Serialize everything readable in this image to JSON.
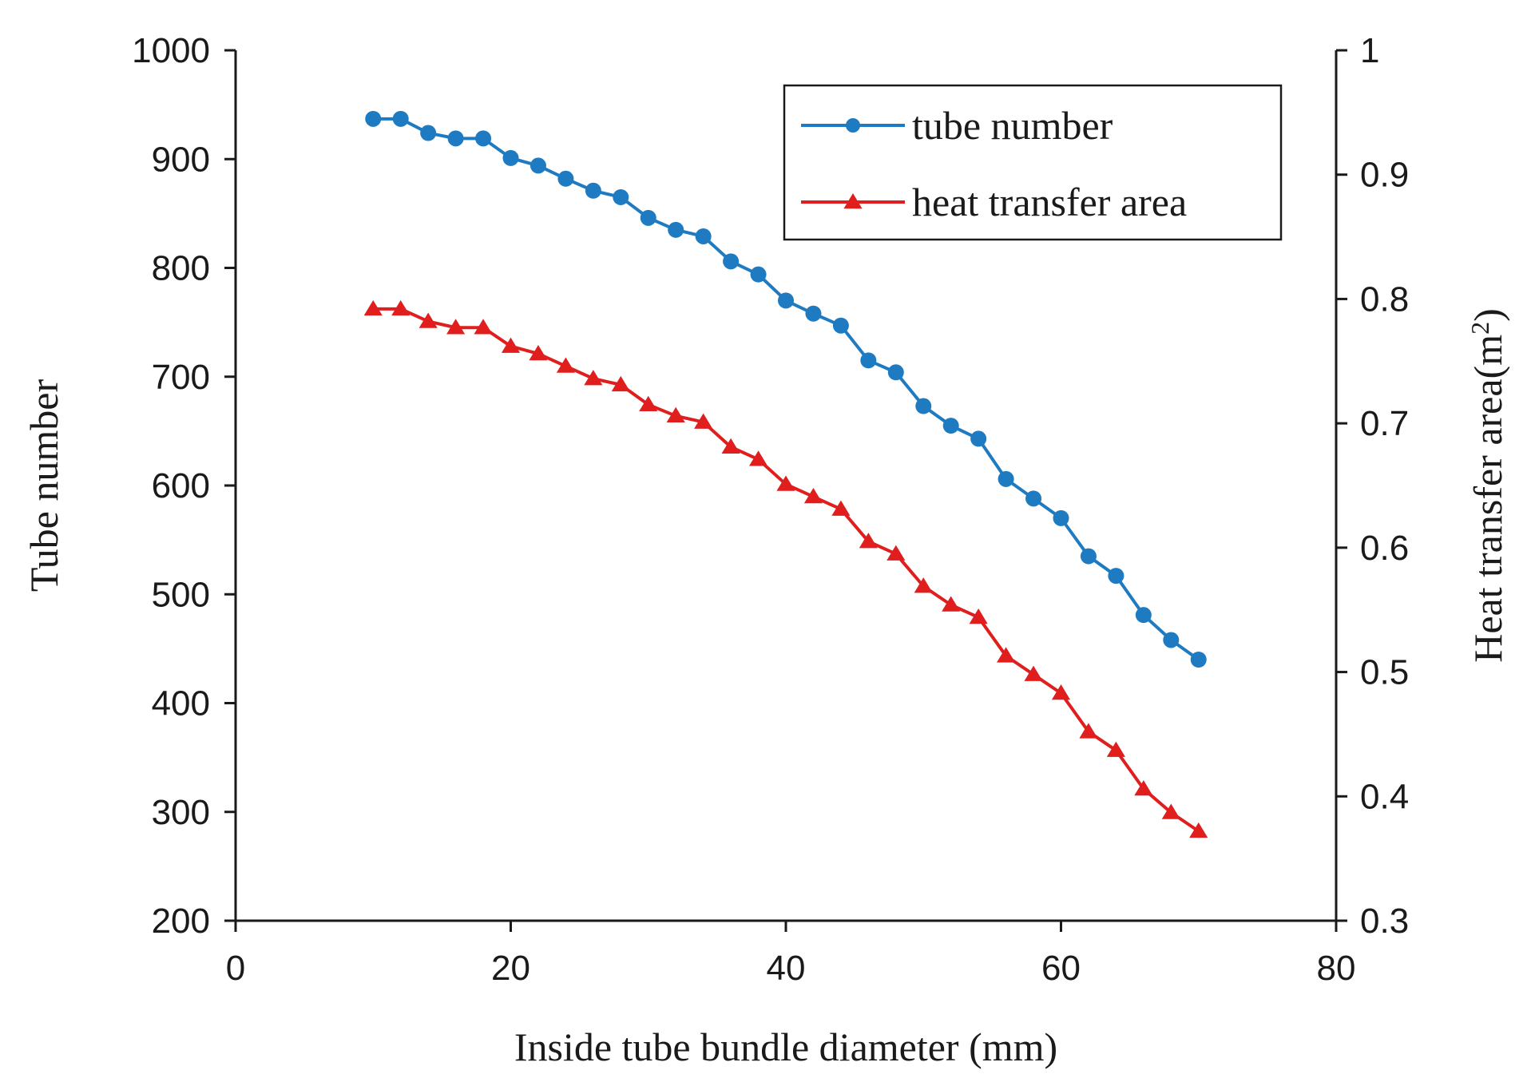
{
  "chart_data": {
    "type": "line",
    "title": "",
    "xlabel": "Inside tube bundle diameter (mm)",
    "ylabel": "Tube number",
    "y2label": "Heat transfer area(m",
    "y2label_sup": "2",
    "y2label_end": ")",
    "xlim": [
      0,
      80
    ],
    "ylim": [
      200,
      1000
    ],
    "y2lim": [
      0.3,
      1.0
    ],
    "x_ticks": [
      "0",
      "20",
      "40",
      "60",
      "80"
    ],
    "y_ticks": [
      "200",
      "300",
      "400",
      "500",
      "600",
      "700",
      "800",
      "900",
      "1000"
    ],
    "y2_ticks": [
      "0.3",
      "0.4",
      "0.5",
      "0.6",
      "0.7",
      "0.8",
      "0.9",
      "1"
    ],
    "legend_position": "top-right",
    "x": [
      10,
      12,
      14,
      16,
      18,
      20,
      22,
      24,
      26,
      28,
      30,
      32,
      34,
      36,
      38,
      40,
      42,
      44,
      46,
      48,
      50,
      52,
      54,
      56,
      58,
      60,
      62,
      64,
      66,
      68,
      70
    ],
    "series": [
      {
        "name": "tube number",
        "axis": "left",
        "color": "#1f7bc1",
        "marker": "circle",
        "values": [
          937,
          937,
          924,
          919,
          919,
          901,
          894,
          882,
          871,
          865,
          846,
          835,
          829,
          806,
          794,
          770,
          758,
          747,
          715,
          704,
          673,
          655,
          643,
          606,
          588,
          570,
          535,
          517,
          481,
          458,
          440
        ]
      },
      {
        "name": "heat transfer area",
        "axis": "right",
        "color": "#e01e1e",
        "marker": "triangle",
        "values": [
          0.792,
          0.792,
          0.782,
          0.777,
          0.777,
          0.762,
          0.756,
          0.746,
          0.736,
          0.731,
          0.715,
          0.706,
          0.701,
          0.681,
          0.671,
          0.651,
          0.641,
          0.631,
          0.605,
          0.595,
          0.569,
          0.554,
          0.544,
          0.513,
          0.498,
          0.483,
          0.452,
          0.437,
          0.406,
          0.387,
          0.372
        ]
      }
    ]
  }
}
